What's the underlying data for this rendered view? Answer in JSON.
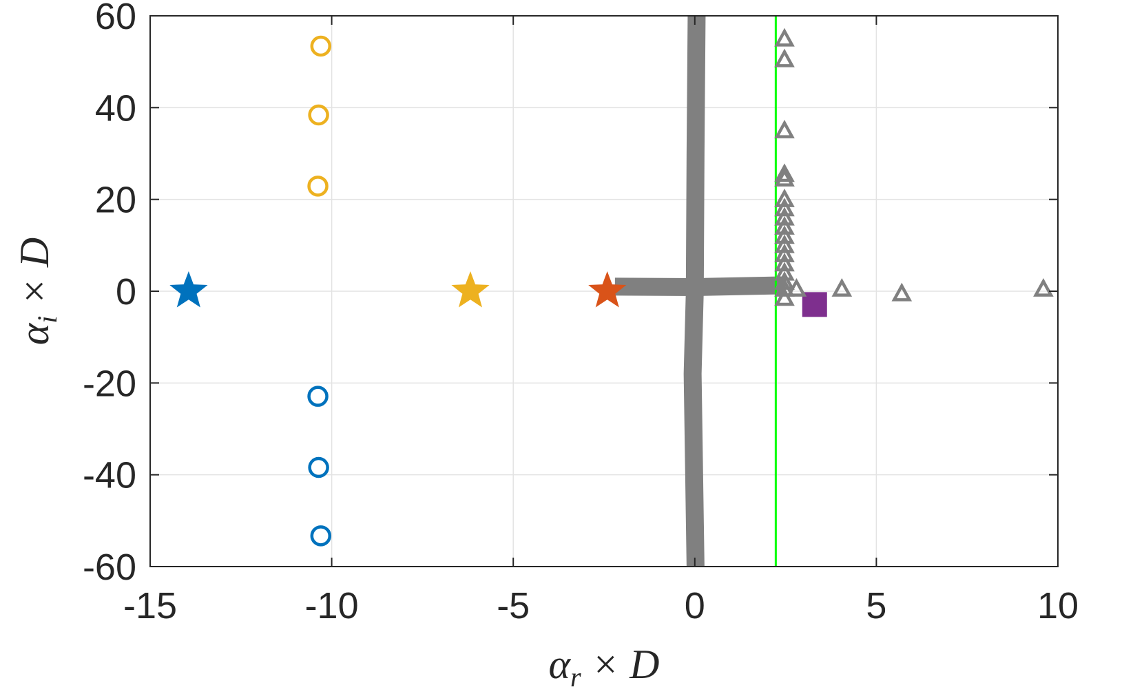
{
  "chart_data": {
    "type": "scatter",
    "title": "",
    "xlabel": {
      "main": "α",
      "sub": "r",
      "rest": " × D"
    },
    "ylabel": {
      "main": "α",
      "sub": "i",
      "rest": " × D"
    },
    "xlim": [
      -15,
      10
    ],
    "ylim": [
      -60,
      60
    ],
    "xticks": [
      -15,
      -10,
      -5,
      0,
      5,
      10
    ],
    "yticks": [
      -60,
      -40,
      -20,
      0,
      20,
      40,
      60
    ],
    "xtick_labels": [
      "-15",
      "-10",
      "-5",
      "0",
      "5",
      "10"
    ],
    "ytick_labels": [
      "-60",
      "-40",
      "-20",
      "0",
      "20",
      "40",
      "60"
    ],
    "grid": true,
    "colors": {
      "blue": "#0072BD",
      "yellow": "#EDB120",
      "orange": "#D95319",
      "gray": "#808080",
      "green": "#00FF00",
      "purple": "#7E2F8E"
    },
    "vertical_line": {
      "x": 2.23,
      "color": "#00FF00"
    },
    "series": [
      {
        "marker": "star",
        "color": "#0072BD",
        "points": [
          [
            -13.94,
            0
          ]
        ]
      },
      {
        "marker": "star",
        "color": "#EDB120",
        "points": [
          [
            -6.18,
            0
          ]
        ]
      },
      {
        "marker": "star",
        "color": "#D95319",
        "points": [
          [
            -2.41,
            0
          ]
        ]
      },
      {
        "marker": "circle",
        "color": "#EDB120",
        "points": [
          [
            -10.3,
            53.4
          ],
          [
            -10.36,
            38.4
          ],
          [
            -10.38,
            22.9
          ]
        ]
      },
      {
        "marker": "circle",
        "color": "#0072BD",
        "points": [
          [
            -10.38,
            -22.9
          ],
          [
            -10.36,
            -38.4
          ],
          [
            -10.3,
            -53.3
          ]
        ]
      },
      {
        "marker": "square",
        "color": "#7E2F8E",
        "points": [
          [
            3.3,
            -2.9
          ]
        ]
      },
      {
        "marker": "triangle",
        "color": "#808080",
        "points": [
          [
            2.47,
            55
          ],
          [
            2.47,
            50.5
          ],
          [
            2.47,
            35
          ],
          [
            2.47,
            25.5
          ],
          [
            2.47,
            24.5
          ],
          [
            2.47,
            20
          ],
          [
            2.47,
            18
          ],
          [
            2.47,
            16
          ],
          [
            2.47,
            14
          ],
          [
            2.47,
            12
          ],
          [
            2.47,
            10
          ],
          [
            2.47,
            8
          ],
          [
            2.47,
            6
          ],
          [
            2.47,
            4
          ],
          [
            2.47,
            2
          ],
          [
            2.47,
            0.5
          ],
          [
            2.47,
            -1.5
          ],
          [
            2.8,
            0.5
          ],
          [
            4.05,
            0.5
          ],
          [
            5.7,
            -0.5
          ],
          [
            9.6,
            0.5
          ]
        ]
      },
      {
        "marker": "thick-line",
        "color": "#808080",
        "points": [
          [
            0.05,
            60
          ],
          [
            0.02,
            30
          ],
          [
            0.0,
            0
          ],
          [
            -0.06,
            -18
          ],
          [
            0.02,
            -60
          ]
        ]
      },
      {
        "marker": "thick-line",
        "color": "#808080",
        "points": [
          [
            -2.2,
            1.0
          ],
          [
            0,
            0.9
          ],
          [
            2.5,
            1.3
          ]
        ]
      }
    ]
  }
}
